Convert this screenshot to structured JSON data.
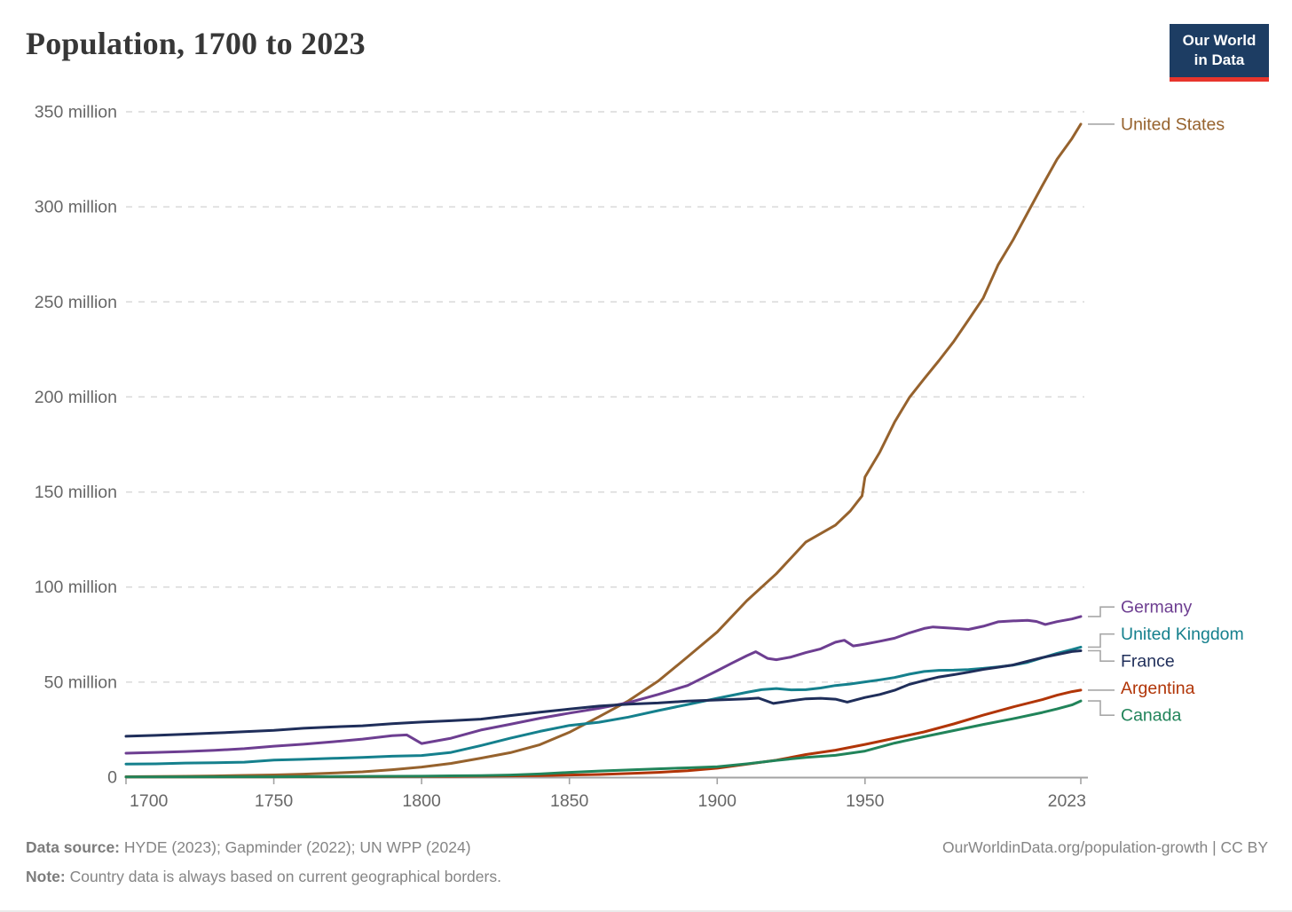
{
  "header": {
    "title": "Population, 1700 to 2023",
    "logo": {
      "line1": "Our World",
      "line2": "in Data",
      "bg": "#1D3D63",
      "accent": "#E8352C"
    }
  },
  "chart_data": {
    "type": "line",
    "title": "Population, 1700 to 2023",
    "xlabel": "",
    "ylabel": "",
    "xlim": [
      1700,
      2023
    ],
    "ylim": [
      0,
      350
    ],
    "grid": "horizontal-dashed",
    "legend_position": "right",
    "x_ticks": [
      1700,
      1750,
      1800,
      1850,
      1900,
      1950,
      2023
    ],
    "y_ticks": [
      {
        "value": 0,
        "label": "0"
      },
      {
        "value": 50,
        "label": "50 million"
      },
      {
        "value": 100,
        "label": "100 million"
      },
      {
        "value": 150,
        "label": "150 million"
      },
      {
        "value": 200,
        "label": "200 million"
      },
      {
        "value": 250,
        "label": "250 million"
      },
      {
        "value": 300,
        "label": "300 million"
      },
      {
        "value": 350,
        "label": "350 million"
      }
    ],
    "unit": "million people",
    "series": [
      {
        "name": "United States",
        "color": "#96622D",
        "points": [
          [
            1700,
            0.25
          ],
          [
            1710,
            0.33
          ],
          [
            1720,
            0.47
          ],
          [
            1730,
            0.63
          ],
          [
            1740,
            0.91
          ],
          [
            1750,
            1.17
          ],
          [
            1760,
            1.59
          ],
          [
            1770,
            2.15
          ],
          [
            1780,
            2.78
          ],
          [
            1790,
            3.93
          ],
          [
            1800,
            5.31
          ],
          [
            1810,
            7.24
          ],
          [
            1820,
            9.98
          ],
          [
            1830,
            12.9
          ],
          [
            1840,
            17.1
          ],
          [
            1850,
            23.6
          ],
          [
            1860,
            31.8
          ],
          [
            1870,
            40.2
          ],
          [
            1880,
            50.5
          ],
          [
            1890,
            63.3
          ],
          [
            1900,
            76.4
          ],
          [
            1910,
            92.8
          ],
          [
            1920,
            107.0
          ],
          [
            1930,
            123.7
          ],
          [
            1940,
            132.6
          ],
          [
            1945,
            140.0
          ],
          [
            1949,
            148.0
          ],
          [
            1950,
            157.9
          ],
          [
            1955,
            171.0
          ],
          [
            1960,
            186.7
          ],
          [
            1965,
            199.7
          ],
          [
            1970,
            209.5
          ],
          [
            1975,
            219.1
          ],
          [
            1980,
            229.2
          ],
          [
            1985,
            240.5
          ],
          [
            1990,
            252.1
          ],
          [
            1995,
            269.4
          ],
          [
            2000,
            282.4
          ],
          [
            2005,
            296.8
          ],
          [
            2010,
            311.2
          ],
          [
            2015,
            325.1
          ],
          [
            2020,
            335.9
          ],
          [
            2023,
            343.5
          ]
        ]
      },
      {
        "name": "Germany",
        "color": "#6D3E91",
        "points": [
          [
            1700,
            12.6
          ],
          [
            1710,
            13.0
          ],
          [
            1720,
            13.5
          ],
          [
            1730,
            14.1
          ],
          [
            1740,
            15.0
          ],
          [
            1750,
            16.3
          ],
          [
            1760,
            17.3
          ],
          [
            1770,
            18.6
          ],
          [
            1780,
            20.0
          ],
          [
            1790,
            21.8
          ],
          [
            1795,
            22.2
          ],
          [
            1800,
            17.7
          ],
          [
            1810,
            20.5
          ],
          [
            1820,
            24.8
          ],
          [
            1830,
            27.8
          ],
          [
            1840,
            31.0
          ],
          [
            1850,
            33.7
          ],
          [
            1860,
            36.2
          ],
          [
            1870,
            39.2
          ],
          [
            1880,
            43.5
          ],
          [
            1890,
            48.2
          ],
          [
            1900,
            56.0
          ],
          [
            1905,
            60.0
          ],
          [
            1910,
            63.9
          ],
          [
            1913,
            66.0
          ],
          [
            1917,
            62.5
          ],
          [
            1920,
            61.8
          ],
          [
            1925,
            63.2
          ],
          [
            1930,
            65.5
          ],
          [
            1935,
            67.5
          ],
          [
            1940,
            71.0
          ],
          [
            1943,
            72.0
          ],
          [
            1946,
            69.0
          ],
          [
            1948,
            69.5
          ],
          [
            1950,
            70.0
          ],
          [
            1955,
            71.5
          ],
          [
            1960,
            73.1
          ],
          [
            1965,
            75.9
          ],
          [
            1970,
            78.2
          ],
          [
            1973,
            79.0
          ],
          [
            1980,
            78.3
          ],
          [
            1985,
            77.7
          ],
          [
            1990,
            79.4
          ],
          [
            1995,
            81.7
          ],
          [
            2000,
            82.2
          ],
          [
            2005,
            82.5
          ],
          [
            2008,
            81.9
          ],
          [
            2011,
            80.3
          ],
          [
            2015,
            81.8
          ],
          [
            2020,
            83.2
          ],
          [
            2023,
            84.5
          ]
        ]
      },
      {
        "name": "United Kingdom",
        "color": "#15808D",
        "points": [
          [
            1700,
            6.9
          ],
          [
            1710,
            7.0
          ],
          [
            1720,
            7.4
          ],
          [
            1730,
            7.6
          ],
          [
            1740,
            7.9
          ],
          [
            1750,
            9.0
          ],
          [
            1760,
            9.4
          ],
          [
            1770,
            9.9
          ],
          [
            1780,
            10.4
          ],
          [
            1790,
            11.0
          ],
          [
            1800,
            11.4
          ],
          [
            1810,
            13.0
          ],
          [
            1820,
            16.6
          ],
          [
            1830,
            20.5
          ],
          [
            1840,
            24.1
          ],
          [
            1850,
            27.2
          ],
          [
            1860,
            28.9
          ],
          [
            1870,
            31.6
          ],
          [
            1880,
            35.0
          ],
          [
            1890,
            38.2
          ],
          [
            1900,
            41.5
          ],
          [
            1910,
            44.6
          ],
          [
            1915,
            46.0
          ],
          [
            1920,
            46.6
          ],
          [
            1925,
            45.9
          ],
          [
            1930,
            46.0
          ],
          [
            1935,
            46.9
          ],
          [
            1940,
            48.2
          ],
          [
            1945,
            49.0
          ],
          [
            1950,
            50.1
          ],
          [
            1955,
            51.2
          ],
          [
            1960,
            52.4
          ],
          [
            1965,
            54.2
          ],
          [
            1970,
            55.6
          ],
          [
            1975,
            56.2
          ],
          [
            1980,
            56.3
          ],
          [
            1985,
            56.6
          ],
          [
            1990,
            57.2
          ],
          [
            1995,
            58.0
          ],
          [
            2000,
            58.9
          ],
          [
            2005,
            60.4
          ],
          [
            2010,
            62.8
          ],
          [
            2015,
            65.1
          ],
          [
            2020,
            67.1
          ],
          [
            2023,
            68.4
          ]
        ]
      },
      {
        "name": "France",
        "color": "#1F2E5A",
        "points": [
          [
            1700,
            21.5
          ],
          [
            1710,
            22.0
          ],
          [
            1720,
            22.6
          ],
          [
            1730,
            23.2
          ],
          [
            1740,
            23.9
          ],
          [
            1750,
            24.6
          ],
          [
            1760,
            25.7
          ],
          [
            1770,
            26.4
          ],
          [
            1780,
            27.0
          ],
          [
            1790,
            28.1
          ],
          [
            1800,
            29.0
          ],
          [
            1810,
            29.7
          ],
          [
            1820,
            30.5
          ],
          [
            1830,
            32.4
          ],
          [
            1840,
            34.2
          ],
          [
            1850,
            35.8
          ],
          [
            1860,
            37.4
          ],
          [
            1870,
            38.4
          ],
          [
            1880,
            39.0
          ],
          [
            1890,
            40.0
          ],
          [
            1900,
            40.6
          ],
          [
            1910,
            41.2
          ],
          [
            1914,
            41.6
          ],
          [
            1919,
            38.8
          ],
          [
            1925,
            40.2
          ],
          [
            1930,
            41.2
          ],
          [
            1935,
            41.5
          ],
          [
            1940,
            41.0
          ],
          [
            1944,
            39.5
          ],
          [
            1950,
            41.9
          ],
          [
            1955,
            43.5
          ],
          [
            1960,
            45.7
          ],
          [
            1965,
            48.8
          ],
          [
            1970,
            50.8
          ],
          [
            1975,
            52.7
          ],
          [
            1980,
            53.9
          ],
          [
            1985,
            55.2
          ],
          [
            1990,
            56.7
          ],
          [
            1995,
            57.8
          ],
          [
            2000,
            59.0
          ],
          [
            2005,
            61.0
          ],
          [
            2010,
            62.9
          ],
          [
            2015,
            64.5
          ],
          [
            2020,
            66.1
          ],
          [
            2023,
            66.5
          ]
        ]
      },
      {
        "name": "Argentina",
        "color": "#B13507",
        "points": [
          [
            1700,
            0.13
          ],
          [
            1750,
            0.19
          ],
          [
            1800,
            0.33
          ],
          [
            1820,
            0.53
          ],
          [
            1840,
            0.8
          ],
          [
            1850,
            1.1
          ],
          [
            1860,
            1.4
          ],
          [
            1870,
            1.9
          ],
          [
            1880,
            2.5
          ],
          [
            1890,
            3.4
          ],
          [
            1900,
            4.7
          ],
          [
            1910,
            6.8
          ],
          [
            1920,
            8.9
          ],
          [
            1930,
            11.9
          ],
          [
            1940,
            14.2
          ],
          [
            1950,
            17.2
          ],
          [
            1960,
            20.5
          ],
          [
            1970,
            23.8
          ],
          [
            1980,
            28.0
          ],
          [
            1990,
            32.6
          ],
          [
            2000,
            36.9
          ],
          [
            2010,
            40.8
          ],
          [
            2015,
            43.1
          ],
          [
            2020,
            45.0
          ],
          [
            2023,
            45.8
          ]
        ]
      },
      {
        "name": "Canada",
        "color": "#21845A",
        "points": [
          [
            1700,
            0.15
          ],
          [
            1750,
            0.2
          ],
          [
            1800,
            0.5
          ],
          [
            1820,
            0.82
          ],
          [
            1830,
            1.1
          ],
          [
            1840,
            1.7
          ],
          [
            1850,
            2.5
          ],
          [
            1860,
            3.2
          ],
          [
            1870,
            3.8
          ],
          [
            1880,
            4.4
          ],
          [
            1890,
            4.9
          ],
          [
            1900,
            5.5
          ],
          [
            1910,
            7.0
          ],
          [
            1920,
            8.8
          ],
          [
            1930,
            10.4
          ],
          [
            1940,
            11.5
          ],
          [
            1950,
            13.7
          ],
          [
            1960,
            17.9
          ],
          [
            1970,
            21.3
          ],
          [
            1980,
            24.5
          ],
          [
            1990,
            27.7
          ],
          [
            2000,
            30.7
          ],
          [
            2010,
            34.0
          ],
          [
            2015,
            35.9
          ],
          [
            2020,
            38.0
          ],
          [
            2023,
            40.1
          ]
        ]
      }
    ]
  },
  "theme": {
    "axis_line": "#a3a3a3",
    "grid_line": "#d9d9d9",
    "tick_text": "#676767",
    "connector": "#a7a7a7",
    "line_width": 3
  },
  "footer": {
    "source_label": "Data source:",
    "source_text": " HYDE (2023); Gapminder (2022); UN WPP (2024)",
    "note_label": "Note:",
    "note_text": " Country data is always based on current geographical borders.",
    "credit": "OurWorldinData.org/population-growth | CC BY"
  }
}
